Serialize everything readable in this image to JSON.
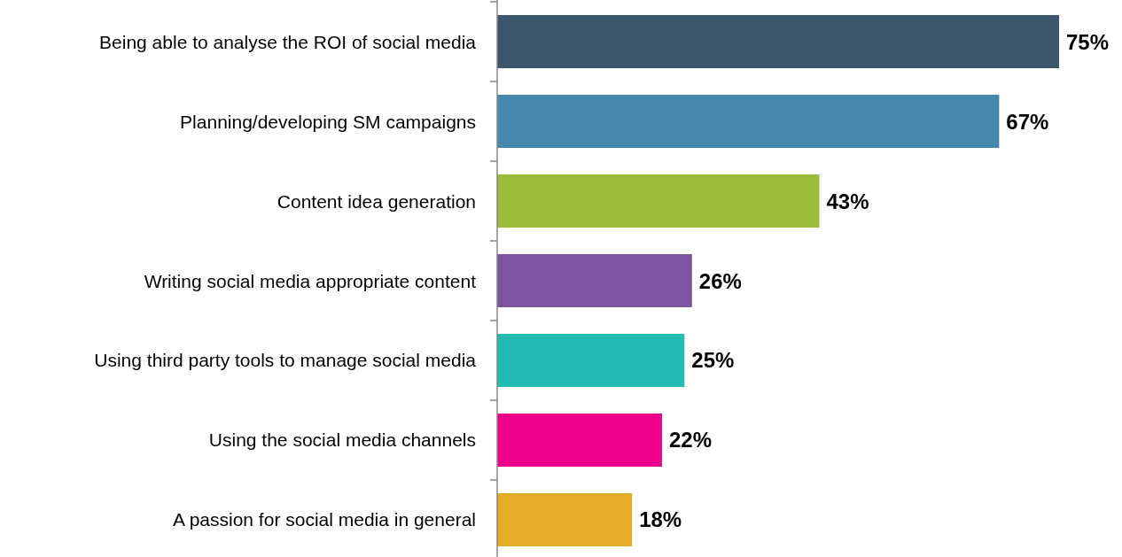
{
  "chart_data": {
    "type": "bar",
    "orientation": "horizontal",
    "categories": [
      "Being able to analyse the ROI of social media",
      "Planning/developing SM campaigns",
      "Content idea generation",
      "Writing social media appropriate content",
      "Using third party tools to manage social media",
      "Using the social media channels",
      "A passion for social media in general"
    ],
    "values": [
      75,
      67,
      43,
      26,
      25,
      22,
      18
    ],
    "colors": [
      "#3c566e",
      "#4587ad",
      "#9bbb3b",
      "#7c55a0",
      "#23bcb3",
      "#ec008c",
      "#e4ac28"
    ],
    "value_labels": [
      "75%",
      "67%",
      "43%",
      "26%",
      "25%",
      "22%",
      "18%"
    ]
  }
}
